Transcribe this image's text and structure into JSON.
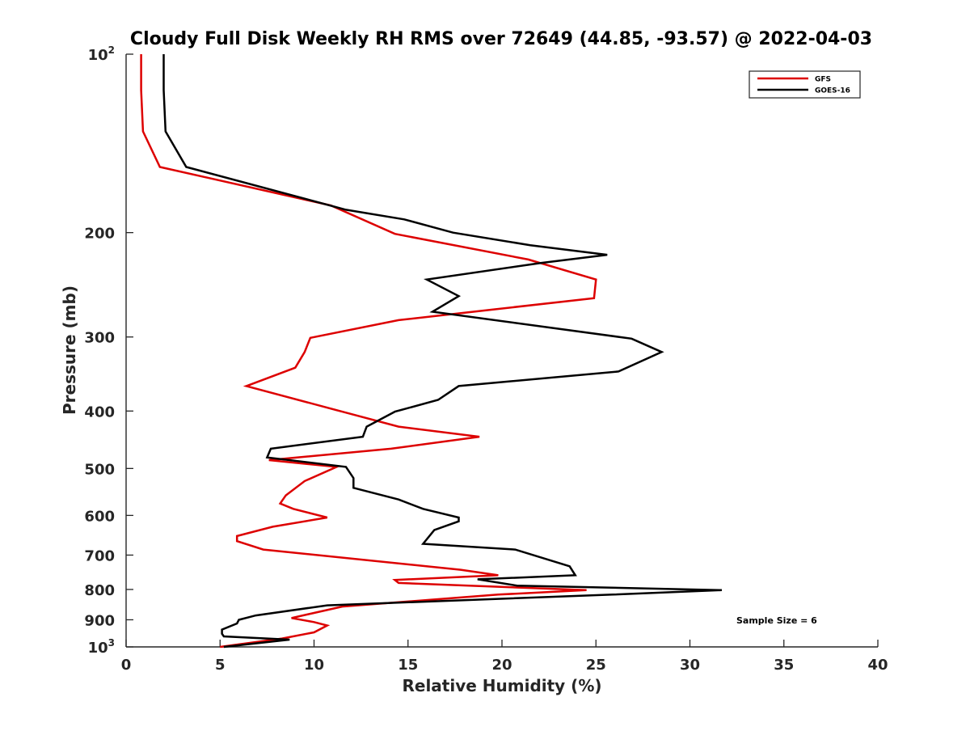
{
  "chart_data": {
    "type": "line",
    "title": "Cloudy Full Disk Weekly RH RMS over 72649 (44.85, -93.57) @ 2022-04-03",
    "xlabel": "Relative Humidity (%)",
    "ylabel": "Pressure (mb)",
    "xlim": [
      0,
      40
    ],
    "ylim": [
      100,
      1000
    ],
    "y_scale": "log",
    "y_reversed": true,
    "grid": false,
    "legend_position": "top-right",
    "x_ticks": [
      "0",
      "5",
      "10",
      "15",
      "20",
      "25",
      "30",
      "35",
      "40"
    ],
    "y_ticks": [
      {
        "value": 100,
        "base": "10",
        "exp": "2"
      },
      {
        "value": 200,
        "label": "200"
      },
      {
        "value": 300,
        "label": "300"
      },
      {
        "value": 400,
        "label": "400"
      },
      {
        "value": 500,
        "label": "500"
      },
      {
        "value": 600,
        "label": "600"
      },
      {
        "value": 700,
        "label": "700"
      },
      {
        "value": 800,
        "label": "800"
      },
      {
        "value": 900,
        "label": "900"
      },
      {
        "value": 1000,
        "base": "10",
        "exp": "3"
      }
    ],
    "annotation": "Sample Size = 6",
    "series": [
      {
        "name": "GFS",
        "color": "#dd0000",
        "points": [
          [
            0.8,
            100
          ],
          [
            0.8,
            115
          ],
          [
            0.9,
            135
          ],
          [
            1.8,
            155
          ],
          [
            10.9,
            180
          ],
          [
            14.3,
            201
          ],
          [
            21.4,
            222
          ],
          [
            25.0,
            240
          ],
          [
            24.9,
            258
          ],
          [
            14.5,
            281
          ],
          [
            9.8,
            301
          ],
          [
            9.5,
            318
          ],
          [
            9.0,
            338
          ],
          [
            6.4,
            363
          ],
          [
            11.5,
            401
          ],
          [
            14.5,
            425
          ],
          [
            18.8,
            442
          ],
          [
            14.1,
            463
          ],
          [
            7.6,
            484
          ],
          [
            11.2,
            497
          ],
          [
            9.5,
            525
          ],
          [
            8.5,
            555
          ],
          [
            8.2,
            573
          ],
          [
            8.9,
            585
          ],
          [
            10.7,
            605
          ],
          [
            7.8,
            627
          ],
          [
            5.9,
            650
          ],
          [
            5.9,
            663
          ],
          [
            7.3,
            685
          ],
          [
            17.8,
            741
          ],
          [
            19.8,
            757
          ],
          [
            14.3,
            771
          ],
          [
            14.5,
            780
          ],
          [
            24.5,
            802
          ],
          [
            19.8,
            816
          ],
          [
            11.5,
            855
          ],
          [
            8.8,
            894
          ],
          [
            10.0,
            908
          ],
          [
            10.7,
            920
          ],
          [
            10.0,
            945
          ],
          [
            8.3,
            968
          ],
          [
            5.0,
            1000
          ]
        ]
      },
      {
        "name": "GOES-16",
        "color": "#000000",
        "points": [
          [
            2.0,
            100
          ],
          [
            2.0,
            115
          ],
          [
            2.1,
            135
          ],
          [
            3.2,
            155
          ],
          [
            11.7,
            183
          ],
          [
            14.8,
            190
          ],
          [
            17.4,
            200
          ],
          [
            21.5,
            210
          ],
          [
            25.6,
            218
          ],
          [
            22.1,
            225
          ],
          [
            16.0,
            240
          ],
          [
            17.7,
            256
          ],
          [
            16.3,
            272
          ],
          [
            26.9,
            302
          ],
          [
            28.5,
            318
          ],
          [
            26.2,
            343
          ],
          [
            17.7,
            363
          ],
          [
            16.6,
            383
          ],
          [
            14.3,
            401
          ],
          [
            12.8,
            425
          ],
          [
            12.6,
            442
          ],
          [
            7.7,
            463
          ],
          [
            7.5,
            479
          ],
          [
            11.7,
            497
          ],
          [
            12.1,
            519
          ],
          [
            12.1,
            539
          ],
          [
            14.5,
            564
          ],
          [
            15.8,
            585
          ],
          [
            17.7,
            605
          ],
          [
            17.7,
            614
          ],
          [
            16.4,
            635
          ],
          [
            15.8,
            670
          ],
          [
            20.7,
            685
          ],
          [
            23.6,
            731
          ],
          [
            23.9,
            757
          ],
          [
            18.7,
            769
          ],
          [
            20.8,
            788
          ],
          [
            31.7,
            802
          ],
          [
            25.9,
            816
          ],
          [
            10.7,
            851
          ],
          [
            6.9,
            885
          ],
          [
            6.0,
            900
          ],
          [
            5.9,
            913
          ],
          [
            5.1,
            935
          ],
          [
            5.1,
            950
          ],
          [
            5.2,
            960
          ],
          [
            8.7,
            972
          ],
          [
            5.2,
            1000
          ]
        ]
      }
    ]
  }
}
